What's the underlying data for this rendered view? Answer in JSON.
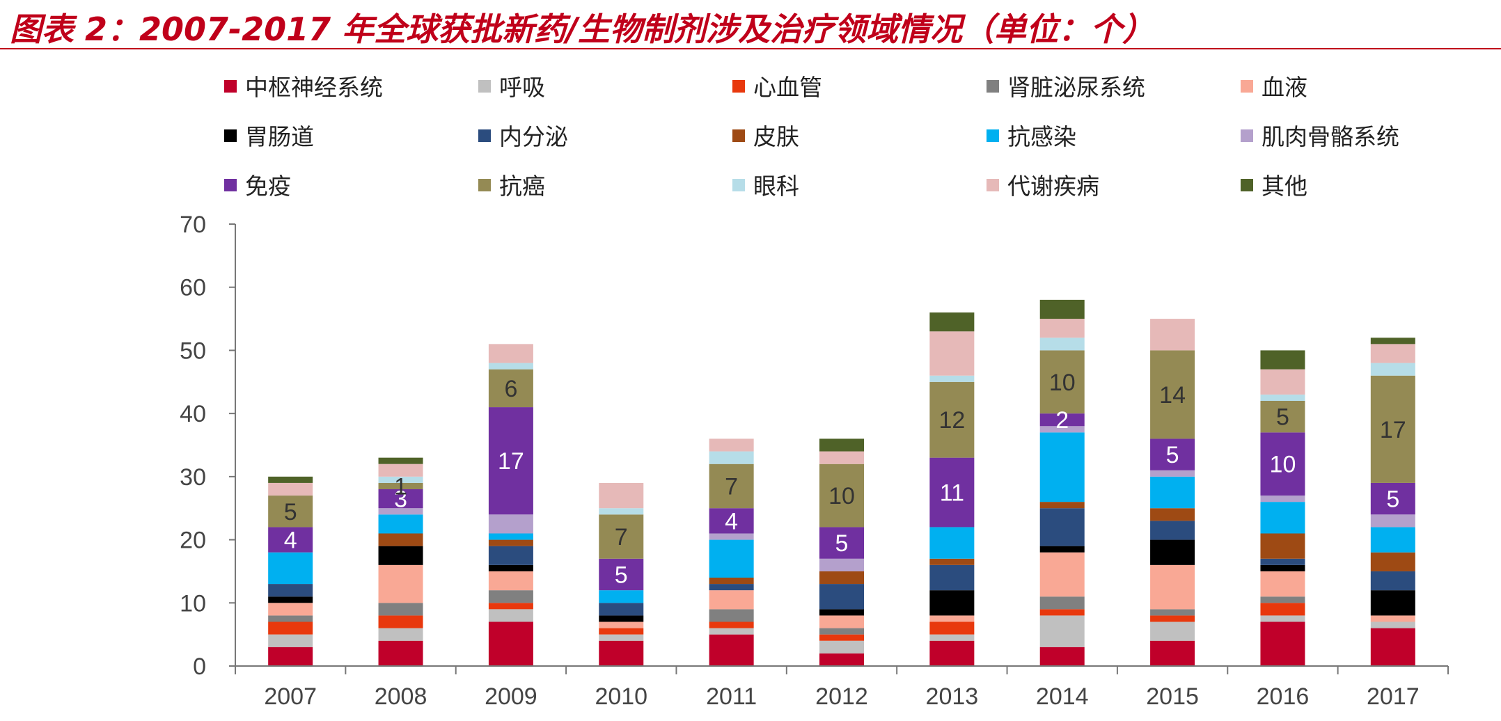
{
  "chart_data": {
    "type": "bar",
    "stacked": true,
    "title": "图表 2：2007-2017 年全球获批新药/生物制剂涉及治疗领域情况（单位：个）",
    "xlabel": "",
    "ylabel": "",
    "ylim": [
      0,
      70
    ],
    "yticks": [
      0,
      10,
      20,
      30,
      40,
      50,
      60,
      70
    ],
    "legend_position": "top",
    "categories": [
      "2007",
      "2008",
      "2009",
      "2010",
      "2011",
      "2012",
      "2013",
      "2014",
      "2015",
      "2016",
      "2017"
    ],
    "series": [
      {
        "name": "中枢神经系统",
        "color": "#c0002a",
        "values": [
          3,
          4,
          7,
          4,
          5,
          2,
          4,
          3,
          4,
          7,
          6
        ]
      },
      {
        "name": "呼吸",
        "color": "#c0c0c0",
        "values": [
          2,
          2,
          2,
          1,
          1,
          2,
          1,
          5,
          3,
          1,
          1
        ]
      },
      {
        "name": "心血管",
        "color": "#e8380d",
        "values": [
          2,
          2,
          1,
          1,
          1,
          1,
          2,
          1,
          1,
          2,
          0
        ]
      },
      {
        "name": "肾脏泌尿系统",
        "color": "#808080",
        "values": [
          1,
          2,
          2,
          0,
          2,
          1,
          0,
          2,
          1,
          1,
          0
        ]
      },
      {
        "name": "血液",
        "color": "#f9a895",
        "values": [
          2,
          6,
          3,
          1,
          3,
          2,
          1,
          7,
          7,
          4,
          1
        ]
      },
      {
        "name": "胃肠道",
        "color": "#000000",
        "values": [
          1,
          3,
          1,
          1,
          0,
          1,
          4,
          1,
          4,
          1,
          4
        ]
      },
      {
        "name": "内分泌",
        "color": "#2b4c7e",
        "values": [
          2,
          0,
          3,
          2,
          1,
          4,
          4,
          6,
          3,
          1,
          3
        ]
      },
      {
        "name": "皮肤",
        "color": "#9e4a14",
        "values": [
          0,
          2,
          1,
          0,
          1,
          2,
          1,
          1,
          2,
          4,
          3
        ]
      },
      {
        "name": "抗感染",
        "color": "#00b0f0",
        "values": [
          5,
          3,
          1,
          2,
          6,
          0,
          5,
          11,
          5,
          5,
          4
        ]
      },
      {
        "name": "肌肉骨骼系统",
        "color": "#b4a0cc",
        "values": [
          0,
          1,
          3,
          0,
          1,
          2,
          0,
          1,
          1,
          1,
          2
        ]
      },
      {
        "name": "免疫",
        "color": "#7030a0",
        "values": [
          4,
          3,
          17,
          5,
          4,
          5,
          11,
          2,
          5,
          10,
          5
        ]
      },
      {
        "name": "抗癌",
        "color": "#948a54",
        "values": [
          5,
          1,
          6,
          7,
          7,
          10,
          12,
          10,
          14,
          5,
          17
        ]
      },
      {
        "name": "眼科",
        "color": "#b6dde8",
        "values": [
          0,
          1,
          1,
          1,
          2,
          0,
          1,
          2,
          0,
          1,
          2
        ]
      },
      {
        "name": "代谢疾病",
        "color": "#e6b9b8",
        "values": [
          2,
          2,
          3,
          4,
          2,
          2,
          7,
          3,
          5,
          4,
          3
        ]
      },
      {
        "name": "其他",
        "color": "#4f6228",
        "values": [
          1,
          1,
          0,
          0,
          0,
          2,
          3,
          3,
          0,
          3,
          1
        ]
      }
    ],
    "data_labels": [
      {
        "series": "免疫",
        "category": "2007",
        "text": "4",
        "color": "#ffffff"
      },
      {
        "series": "抗癌",
        "category": "2007",
        "text": "5",
        "color": "#333333"
      },
      {
        "series": "免疫",
        "category": "2008",
        "text": "3",
        "color": "#ffffff"
      },
      {
        "series": "抗癌",
        "category": "2008",
        "text": "1",
        "color": "#333333"
      },
      {
        "series": "免疫",
        "category": "2009",
        "text": "17",
        "color": "#ffffff"
      },
      {
        "series": "抗癌",
        "category": "2009",
        "text": "6",
        "color": "#333333"
      },
      {
        "series": "免疫",
        "category": "2010",
        "text": "5",
        "color": "#ffffff"
      },
      {
        "series": "抗癌",
        "category": "2010",
        "text": "7",
        "color": "#333333"
      },
      {
        "series": "免疫",
        "category": "2011",
        "text": "4",
        "color": "#ffffff"
      },
      {
        "series": "抗癌",
        "category": "2011",
        "text": "7",
        "color": "#333333"
      },
      {
        "series": "免疫",
        "category": "2012",
        "text": "5",
        "color": "#ffffff"
      },
      {
        "series": "抗癌",
        "category": "2012",
        "text": "10",
        "color": "#333333"
      },
      {
        "series": "免疫",
        "category": "2013",
        "text": "11",
        "color": "#ffffff"
      },
      {
        "series": "抗癌",
        "category": "2013",
        "text": "12",
        "color": "#333333"
      },
      {
        "series": "免疫",
        "category": "2014",
        "text": "2",
        "color": "#ffffff"
      },
      {
        "series": "抗癌",
        "category": "2014",
        "text": "10",
        "color": "#333333"
      },
      {
        "series": "免疫",
        "category": "2015",
        "text": "5",
        "color": "#ffffff"
      },
      {
        "series": "抗癌",
        "category": "2015",
        "text": "14",
        "color": "#333333"
      },
      {
        "series": "免疫",
        "category": "2016",
        "text": "10",
        "color": "#ffffff"
      },
      {
        "series": "抗癌",
        "category": "2016",
        "text": "5",
        "color": "#333333"
      },
      {
        "series": "免疫",
        "category": "2017",
        "text": "5",
        "color": "#ffffff"
      },
      {
        "series": "抗癌",
        "category": "2017",
        "text": "17",
        "color": "#333333"
      }
    ]
  }
}
